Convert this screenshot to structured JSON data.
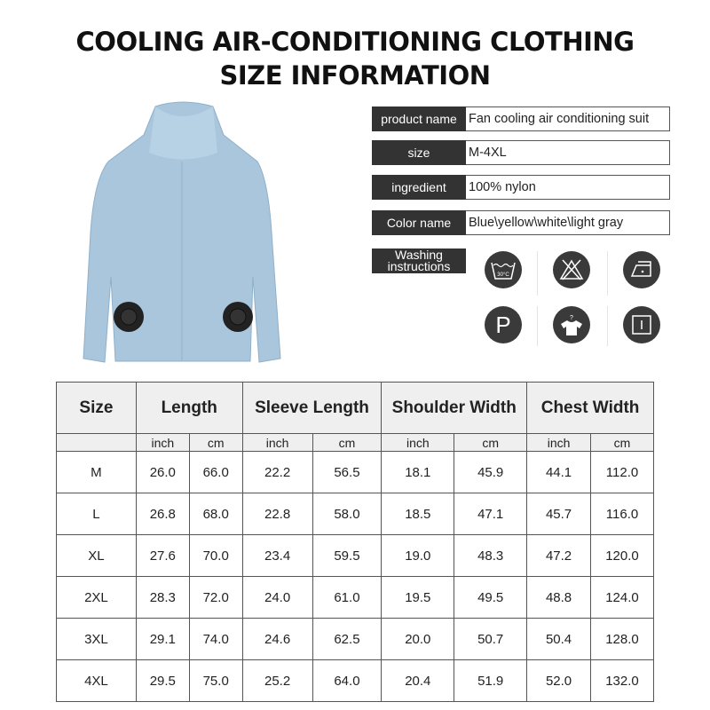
{
  "title": {
    "line1": "COOLING AIR-CONDITIONING CLOTHING",
    "line2": "SIZE INFORMATION"
  },
  "info": [
    {
      "label": "product name",
      "value": "Fan cooling air conditioning suit"
    },
    {
      "label": "size",
      "value": "M-4XL"
    },
    {
      "label": "ingredient",
      "value": "100% nylon"
    },
    {
      "label": "Color name",
      "value": "Blue\\yellow\\white\\light gray"
    }
  ],
  "washing": {
    "label1": "Washing",
    "label2": "instructions",
    "icons": [
      "wash-30c-icon",
      "do-not-bleach-icon",
      "iron-low-icon",
      "dry-clean-p-icon",
      "shirt-care-icon",
      "tumble-dry-icon"
    ],
    "wash_temp": "30°C",
    "dry_clean": "P"
  },
  "colors": {
    "label_bg": "#333333",
    "jacket": "#a9c6dd",
    "header_bg": "#efefef"
  },
  "table": {
    "headers": [
      "Size",
      "Length",
      "Sleeve Length",
      "Shoulder Width",
      "Chest Width"
    ],
    "units": [
      "inch",
      "cm",
      "inch",
      "cm",
      "inch",
      "cm",
      "inch",
      "cm"
    ],
    "rows": [
      [
        "M",
        "26.0",
        "66.0",
        "22.2",
        "56.5",
        "18.1",
        "45.9",
        "44.1",
        "112.0"
      ],
      [
        "L",
        "26.8",
        "68.0",
        "22.8",
        "58.0",
        "18.5",
        "47.1",
        "45.7",
        "116.0"
      ],
      [
        "XL",
        "27.6",
        "70.0",
        "23.4",
        "59.5",
        "19.0",
        "48.3",
        "47.2",
        "120.0"
      ],
      [
        "2XL",
        "28.3",
        "72.0",
        "24.0",
        "61.0",
        "19.5",
        "49.5",
        "48.8",
        "124.0"
      ],
      [
        "3XL",
        "29.1",
        "74.0",
        "24.6",
        "62.5",
        "20.0",
        "50.7",
        "50.4",
        "128.0"
      ],
      [
        "4XL",
        "29.5",
        "75.0",
        "25.2",
        "64.0",
        "20.4",
        "51.9",
        "52.0",
        "132.0"
      ]
    ]
  }
}
